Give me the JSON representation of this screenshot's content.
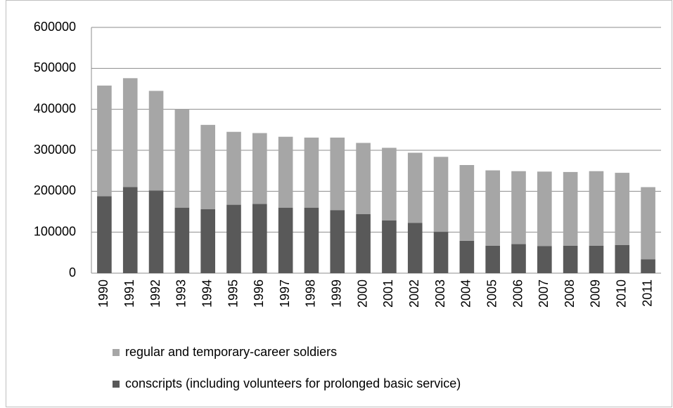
{
  "chart_data": {
    "type": "stacked_bar",
    "categories": [
      "1990",
      "1991",
      "1992",
      "1993",
      "1994",
      "1995",
      "1996",
      "1997",
      "1998",
      "1999",
      "2000",
      "2001",
      "2002",
      "2003",
      "2004",
      "2005",
      "2006",
      "2007",
      "2008",
      "2009",
      "2010",
      "2011"
    ],
    "series": [
      {
        "name": "regular and temporary-career soldiers",
        "color": "#a6a6a6",
        "values": [
          270000,
          266000,
          243000,
          240000,
          206000,
          178000,
          173000,
          173000,
          171000,
          177000,
          174000,
          177000,
          171000,
          183000,
          185000,
          184000,
          178000,
          182000,
          180000,
          182000,
          176000,
          176000
        ]
      },
      {
        "name": "conscripts (including volunteers for prolonged basic service)",
        "color": "#595959",
        "values": [
          188000,
          210000,
          202000,
          160000,
          156000,
          167000,
          169000,
          160000,
          160000,
          154000,
          144000,
          129000,
          123000,
          101000,
          79000,
          67000,
          71000,
          66000,
          67000,
          67000,
          69000,
          34000
        ]
      }
    ],
    "stack_order": [
      1,
      0
    ],
    "ylim": [
      0,
      600000
    ],
    "yticks": [
      0,
      100000,
      200000,
      300000,
      400000,
      500000,
      600000
    ],
    "grid": true,
    "legend": "bottom"
  }
}
